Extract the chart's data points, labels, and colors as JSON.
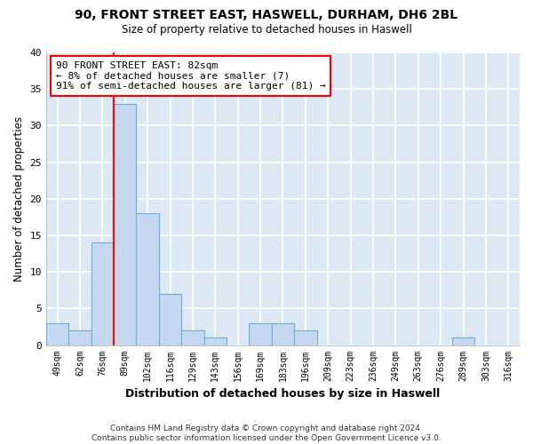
{
  "title1": "90, FRONT STREET EAST, HASWELL, DURHAM, DH6 2BL",
  "title2": "Size of property relative to detached houses in Haswell",
  "xlabel": "Distribution of detached houses by size in Haswell",
  "ylabel": "Number of detached properties",
  "bin_labels": [
    "49sqm",
    "62sqm",
    "76sqm",
    "89sqm",
    "102sqm",
    "116sqm",
    "129sqm",
    "143sqm",
    "156sqm",
    "169sqm",
    "183sqm",
    "196sqm",
    "209sqm",
    "223sqm",
    "236sqm",
    "249sqm",
    "263sqm",
    "276sqm",
    "289sqm",
    "303sqm",
    "316sqm"
  ],
  "bar_heights": [
    3,
    2,
    14,
    33,
    18,
    7,
    2,
    1,
    0,
    3,
    3,
    2,
    0,
    0,
    0,
    0,
    0,
    0,
    1,
    0,
    0
  ],
  "bar_color": "#c5d8f0",
  "bar_edge_color": "#6baed6",
  "vline_x": 2.5,
  "vline_color": "red",
  "annotation_text": "90 FRONT STREET EAST: 82sqm\n← 8% of detached houses are smaller (7)\n91% of semi-detached houses are larger (81) →",
  "annotation_box_color": "white",
  "annotation_box_edge_color": "red",
  "ylim": [
    0,
    40
  ],
  "yticks": [
    0,
    5,
    10,
    15,
    20,
    25,
    30,
    35,
    40
  ],
  "footer": "Contains HM Land Registry data © Crown copyright and database right 2024.\nContains public sector information licensed under the Open Government Licence v3.0.",
  "plot_bg_color": "#dce9f5",
  "fig_bg_color": "#ffffff",
  "grid_color": "#ffffff"
}
